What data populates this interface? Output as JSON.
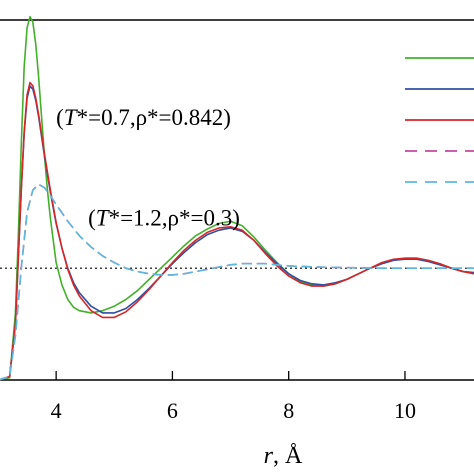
{
  "chart_data": {
    "type": "line",
    "xlabel_var": "r",
    "xlabel_unit": ", Å",
    "ylabel": "",
    "xlim": [
      3.0,
      11.6
    ],
    "ylim": [
      0.0,
      3.22
    ],
    "grid": false,
    "x_ticks": [
      {
        "value": 4,
        "label": "4"
      },
      {
        "value": 6,
        "label": "6"
      },
      {
        "value": 8,
        "label": "8"
      },
      {
        "value": 10,
        "label": "10"
      }
    ],
    "reference_line": {
      "y": 1.0,
      "style": "dotted",
      "color": "#000000"
    },
    "annotations": [
      {
        "var": "T",
        "rest": "*=0.7,ρ*=0.842)",
        "x": 4.0,
        "y": 2.28
      },
      {
        "var": "T",
        "rest": "*=1.2,ρ*=0.3)",
        "x": 4.55,
        "y": 1.38
      }
    ],
    "series": [
      {
        "color": "#43b02a",
        "dash": "solid",
        "x": [
          3.0,
          3.2,
          3.3,
          3.35,
          3.4,
          3.45,
          3.5,
          3.55,
          3.6,
          3.65,
          3.7,
          3.75,
          3.8,
          3.85,
          3.9,
          4.0,
          4.1,
          4.2,
          4.3,
          4.4,
          4.6,
          4.8,
          5.0,
          5.2,
          5.4,
          5.6,
          5.8,
          6.0,
          6.2,
          6.4,
          6.6,
          6.8,
          7.0,
          7.2,
          7.4,
          7.6,
          7.8,
          8.0,
          8.2,
          8.4,
          8.6,
          8.8,
          9.0,
          9.2,
          9.4,
          9.6,
          9.8,
          10.0,
          10.2,
          10.4,
          10.6,
          10.8,
          11.0,
          11.2,
          11.4,
          11.6
        ],
        "y": [
          0,
          0.02,
          0.6,
          1.3,
          2.1,
          2.8,
          3.15,
          3.25,
          3.2,
          3.0,
          2.7,
          2.35,
          2.0,
          1.7,
          1.45,
          1.05,
          0.85,
          0.72,
          0.65,
          0.62,
          0.6,
          0.62,
          0.66,
          0.72,
          0.8,
          0.9,
          1.0,
          1.1,
          1.2,
          1.29,
          1.35,
          1.4,
          1.42,
          1.38,
          1.28,
          1.16,
          1.05,
          0.95,
          0.88,
          0.85,
          0.84,
          0.86,
          0.9,
          0.95,
          1.0,
          1.04,
          1.07,
          1.09,
          1.09,
          1.07,
          1.04,
          1.0,
          0.97,
          0.95,
          0.95,
          0.96
        ]
      },
      {
        "color": "#2f4fa6",
        "dash": "solid",
        "x": [
          3.0,
          3.2,
          3.3,
          3.35,
          3.4,
          3.45,
          3.5,
          3.55,
          3.6,
          3.65,
          3.7,
          3.8,
          3.9,
          4.0,
          4.1,
          4.2,
          4.3,
          4.4,
          4.6,
          4.8,
          5.0,
          5.2,
          5.4,
          5.6,
          5.8,
          6.0,
          6.2,
          6.4,
          6.6,
          6.8,
          7.0,
          7.2,
          7.4,
          7.6,
          7.8,
          8.0,
          8.2,
          8.4,
          8.6,
          8.8,
          9.0,
          9.2,
          9.4,
          9.6,
          9.8,
          10.0,
          10.2,
          10.4,
          10.6,
          10.8,
          11.0,
          11.2,
          11.4,
          11.6
        ],
        "y": [
          0,
          0.03,
          0.5,
          1.1,
          1.7,
          2.2,
          2.52,
          2.63,
          2.6,
          2.5,
          2.35,
          2.0,
          1.68,
          1.4,
          1.18,
          1.0,
          0.87,
          0.78,
          0.66,
          0.6,
          0.6,
          0.64,
          0.72,
          0.82,
          0.93,
          1.04,
          1.14,
          1.23,
          1.3,
          1.34,
          1.36,
          1.33,
          1.25,
          1.14,
          1.04,
          0.95,
          0.89,
          0.86,
          0.85,
          0.87,
          0.9,
          0.95,
          1.0,
          1.04,
          1.07,
          1.08,
          1.08,
          1.06,
          1.03,
          1.0,
          0.97,
          0.96,
          0.96,
          0.97
        ]
      },
      {
        "color": "#d62728",
        "dash": "solid",
        "x": [
          3.0,
          3.2,
          3.3,
          3.35,
          3.4,
          3.45,
          3.5,
          3.55,
          3.6,
          3.65,
          3.7,
          3.8,
          3.9,
          4.0,
          4.1,
          4.2,
          4.3,
          4.4,
          4.6,
          4.8,
          5.0,
          5.2,
          5.4,
          5.6,
          5.8,
          6.0,
          6.2,
          6.4,
          6.6,
          6.8,
          7.0,
          7.2,
          7.4,
          7.6,
          7.8,
          8.0,
          8.2,
          8.4,
          8.6,
          8.8,
          9.0,
          9.2,
          9.4,
          9.6,
          9.8,
          10.0,
          10.2,
          10.4,
          10.6,
          10.8,
          11.0,
          11.2,
          11.4,
          11.6
        ],
        "y": [
          0,
          0.03,
          0.5,
          1.1,
          1.7,
          2.22,
          2.55,
          2.66,
          2.63,
          2.52,
          2.37,
          2.02,
          1.7,
          1.41,
          1.18,
          0.99,
          0.85,
          0.75,
          0.62,
          0.56,
          0.56,
          0.61,
          0.7,
          0.81,
          0.93,
          1.05,
          1.16,
          1.25,
          1.32,
          1.36,
          1.37,
          1.34,
          1.25,
          1.13,
          1.02,
          0.93,
          0.87,
          0.84,
          0.84,
          0.86,
          0.9,
          0.95,
          1.0,
          1.05,
          1.08,
          1.09,
          1.09,
          1.07,
          1.04,
          1.0,
          0.97,
          0.95,
          0.95,
          0.96
        ]
      },
      {
        "color": "#c7479f",
        "dash": "dashed",
        "x": [
          3.0,
          3.2,
          3.3,
          3.4,
          3.5,
          3.6,
          3.7,
          3.8,
          3.9,
          4.0,
          4.2,
          4.4,
          4.6,
          4.8,
          5.0,
          5.2,
          5.4,
          5.6,
          5.8,
          6.0,
          6.2,
          6.4,
          6.6,
          6.8,
          7.0,
          7.2,
          7.4,
          7.6,
          7.8,
          8.0,
          8.5,
          9.0,
          9.5,
          10.0,
          10.5,
          11.0,
          11.6
        ],
        "y": [
          0,
          0.03,
          0.4,
          1.0,
          1.5,
          1.7,
          1.75,
          1.72,
          1.65,
          1.57,
          1.42,
          1.29,
          1.19,
          1.11,
          1.05,
          1.0,
          0.97,
          0.95,
          0.94,
          0.94,
          0.95,
          0.97,
          0.99,
          1.01,
          1.03,
          1.04,
          1.04,
          1.04,
          1.03,
          1.02,
          1.01,
          1.005,
          1.0,
          1.0,
          1.0,
          1.0,
          1.0
        ]
      },
      {
        "color": "#5fb8dc",
        "dash": "dashed",
        "x": [
          3.0,
          3.2,
          3.3,
          3.4,
          3.5,
          3.6,
          3.7,
          3.8,
          3.9,
          4.0,
          4.2,
          4.4,
          4.6,
          4.8,
          5.0,
          5.2,
          5.4,
          5.6,
          5.8,
          6.0,
          6.2,
          6.4,
          6.6,
          6.8,
          7.0,
          7.2,
          7.4,
          7.6,
          7.8,
          8.0,
          8.5,
          9.0,
          9.5,
          10.0,
          10.5,
          11.0,
          11.6
        ],
        "y": [
          0,
          0.03,
          0.4,
          1.0,
          1.5,
          1.7,
          1.75,
          1.72,
          1.65,
          1.57,
          1.42,
          1.29,
          1.19,
          1.11,
          1.05,
          1.0,
          0.97,
          0.95,
          0.94,
          0.94,
          0.95,
          0.97,
          0.99,
          1.01,
          1.03,
          1.04,
          1.04,
          1.04,
          1.03,
          1.02,
          1.01,
          1.005,
          1.0,
          1.0,
          1.0,
          1.0,
          1.0
        ]
      }
    ]
  }
}
